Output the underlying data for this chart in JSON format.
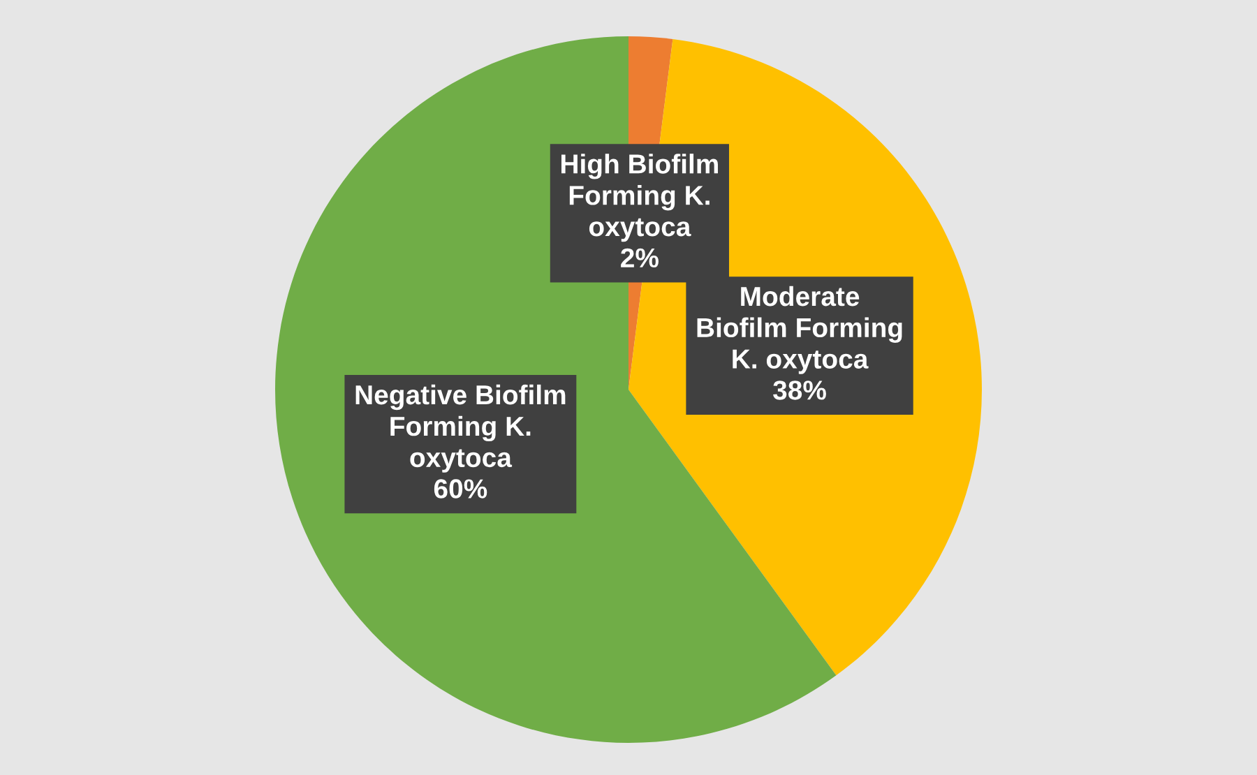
{
  "chart_data": {
    "type": "pie",
    "categories": [
      "High Biofilm\nForming K.\noxytoca",
      "Moderate\nBiofilm Forming\nK. oxytoca",
      "Negative Biofilm\nForming K.\noxytoca"
    ],
    "values": [
      2,
      38,
      60
    ],
    "colors": [
      "#ed7d31",
      "#ffc000",
      "#70ad47"
    ],
    "value_labels": [
      "2%",
      "38%",
      "60%"
    ]
  }
}
